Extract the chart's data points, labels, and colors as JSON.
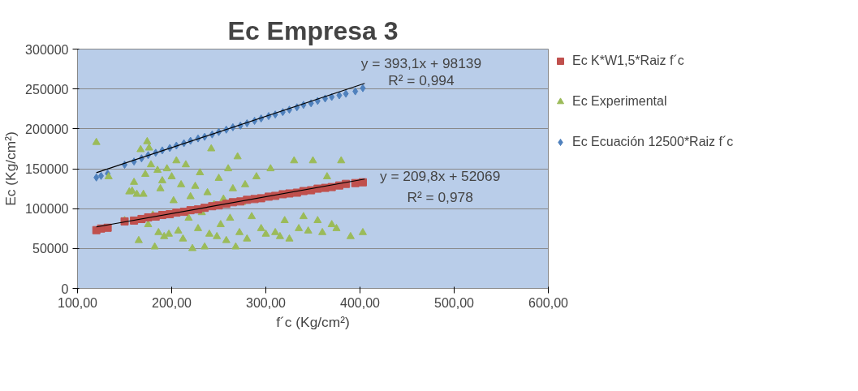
{
  "chart_data": {
    "type": "scatter",
    "title": "Ec Empresa 3",
    "xlabel": "f´c (Kg/cm²)",
    "ylabel": "Ec (Kg/cm²)",
    "xlim": [
      100,
      600
    ],
    "xticks": [
      {
        "value": 100,
        "label": "100,00"
      },
      {
        "value": 200,
        "label": "200,00"
      },
      {
        "value": 300,
        "label": "300,00"
      },
      {
        "value": 400,
        "label": "400,00"
      },
      {
        "value": 500,
        "label": "500,00"
      },
      {
        "value": 600,
        "label": "600,00"
      }
    ],
    "ylim": [
      0,
      300000
    ],
    "yticks": [
      0,
      50000,
      100000,
      150000,
      200000,
      250000,
      300000
    ],
    "grid": "y",
    "legend": "right",
    "series": [
      {
        "name": "Ec K*W1,5*Raiz f´c",
        "color": "#c0504d",
        "marker": "square",
        "x": [
          120,
          125,
          132,
          150,
          160,
          168,
          175,
          183,
          190,
          198,
          205,
          213,
          220,
          228,
          235,
          243,
          250,
          258,
          265,
          273,
          280,
          288,
          295,
          303,
          310,
          318,
          325,
          333,
          340,
          348,
          355,
          363,
          370,
          378,
          385,
          395,
          403
        ],
        "values": [
          73000,
          75000,
          76000,
          84000,
          85000,
          87000,
          89000,
          90000,
          92000,
          93000,
          95000,
          96000,
          98000,
          99000,
          101000,
          103000,
          104000,
          106000,
          108000,
          109000,
          111000,
          112000,
          113000,
          115000,
          116000,
          118000,
          119000,
          120000,
          122000,
          123000,
          125000,
          126000,
          127000,
          129000,
          131000,
          132000,
          133000
        ]
      },
      {
        "name": "Ec Experimental",
        "color": "#9bbb59",
        "marker": "triangle",
        "x": [
          120,
          133,
          150,
          155,
          158,
          160,
          163,
          165,
          167,
          170,
          172,
          174,
          175,
          176,
          178,
          180,
          182,
          185,
          186,
          188,
          190,
          192,
          195,
          197,
          200,
          202,
          205,
          207,
          210,
          212,
          215,
          218,
          220,
          222,
          225,
          228,
          230,
          232,
          235,
          238,
          240,
          242,
          245,
          248,
          250,
          252,
          255,
          258,
          260,
          262,
          265,
          268,
          270,
          272,
          275,
          278,
          280,
          285,
          290,
          295,
          300,
          305,
          310,
          315,
          320,
          325,
          330,
          335,
          340,
          345,
          350,
          355,
          360,
          365,
          370,
          375,
          380,
          390,
          403
        ],
        "values": [
          183000,
          140000,
          85000,
          121000,
          122000,
          133000,
          118000,
          60000,
          174000,
          118000,
          143000,
          184000,
          80000,
          176000,
          155000,
          92000,
          52000,
          148000,
          70000,
          125000,
          135000,
          65000,
          150000,
          68000,
          140000,
          110000,
          160000,
          72000,
          130000,
          62000,
          155000,
          88000,
          115000,
          50000,
          128000,
          75000,
          145000,
          95000,
          52000,
          120000,
          68000,
          175000,
          105000,
          65000,
          138000,
          80000,
          112000,
          60000,
          150000,
          88000,
          125000,
          52000,
          165000,
          70000,
          108000,
          130000,
          62000,
          90000,
          140000,
          75000,
          68000,
          150000,
          70000,
          65000,
          85000,
          62000,
          160000,
          75000,
          90000,
          72000,
          160000,
          85000,
          70000,
          140000,
          80000,
          75000,
          160000,
          65000,
          70000
        ]
      },
      {
        "name": "Ec Ecuación 12500*Raiz f´c",
        "color": "#4f81bd",
        "marker": "diamond",
        "x": [
          120,
          125,
          132,
          150,
          160,
          168,
          175,
          183,
          190,
          198,
          205,
          213,
          220,
          228,
          235,
          243,
          250,
          258,
          265,
          273,
          280,
          288,
          295,
          303,
          310,
          318,
          325,
          333,
          340,
          348,
          355,
          363,
          370,
          378,
          385,
          395,
          403
        ],
        "values": [
          139000,
          141000,
          144000,
          155000,
          159000,
          163000,
          167000,
          170000,
          173000,
          176000,
          179000,
          182000,
          185000,
          188000,
          190000,
          193000,
          196000,
          199000,
          202000,
          204000,
          207000,
          210000,
          213000,
          216000,
          218000,
          221000,
          224000,
          227000,
          230000,
          232000,
          235000,
          238000,
          240000,
          242000,
          244000,
          247000,
          251000
        ]
      },
      {
        "type": "line",
        "color": "#000000",
        "x": [
          120,
          405
        ],
        "values": [
          145000,
          257000
        ]
      },
      {
        "type": "line",
        "color": "#000000",
        "x": [
          120,
          405
        ],
        "values": [
          77000,
          137000
        ]
      }
    ],
    "annotations": [
      "y = 393,1x + 98139",
      "R² = 0,994",
      "y = 209,8x + 52069",
      "R² = 0,978"
    ]
  }
}
